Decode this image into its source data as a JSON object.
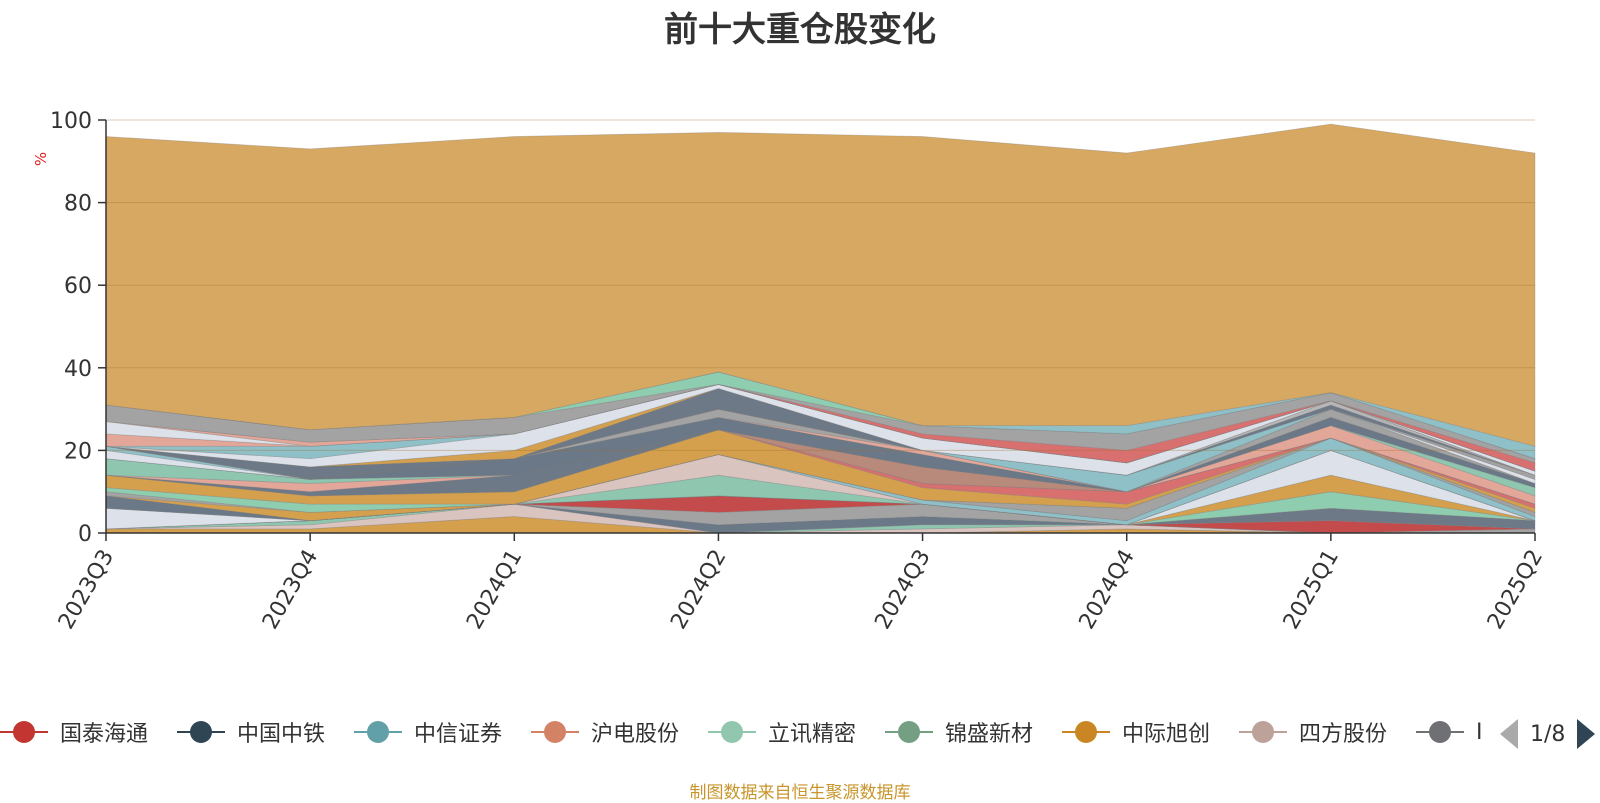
{
  "chart_data": {
    "type": "area",
    "title": "前十大重仓股变化",
    "ylabel": "%",
    "ylim": [
      0,
      100
    ],
    "yticks": [
      0,
      20,
      40,
      60,
      80,
      100
    ],
    "grid": true,
    "stacked": true,
    "categories": [
      "2023Q3",
      "2023Q4",
      "2024Q1",
      "2024Q2",
      "2024Q3",
      "2024Q4",
      "2025Q1",
      "2025Q2"
    ],
    "series": [
      {
        "color": "#d4a04e",
        "values": [
          1,
          1,
          4,
          0,
          0,
          1,
          0,
          0
        ]
      },
      {
        "color": "#dac4c0",
        "values": [
          0,
          1,
          3,
          0,
          1,
          1,
          0,
          0
        ]
      },
      {
        "color": "#8fc6b0",
        "values": [
          0,
          1,
          0,
          0,
          1,
          0,
          0,
          0
        ]
      },
      {
        "color": "#6a7888",
        "values": [
          0,
          0,
          0,
          2,
          2,
          0,
          0,
          0
        ]
      },
      {
        "color": "#a3a3a3",
        "values": [
          0,
          0,
          0,
          3,
          3,
          0,
          0,
          1
        ]
      },
      {
        "color": "#c44b4b",
        "values": [
          0,
          0,
          0,
          4,
          0,
          0,
          3,
          0
        ]
      },
      {
        "color": "#6e7988",
        "values": [
          0,
          0,
          0,
          0,
          0,
          0,
          3,
          2
        ]
      },
      {
        "color": "#8fcdb0",
        "values": [
          0,
          0,
          0,
          0,
          0,
          0,
          4,
          0
        ]
      },
      {
        "color": "#d4a04e",
        "values": [
          0,
          0,
          0,
          0,
          0,
          0,
          4,
          0
        ]
      },
      {
        "color": "#dde2ea",
        "values": [
          5,
          0,
          0,
          0,
          0,
          0,
          6,
          0
        ]
      },
      {
        "color": "#8fc6b0",
        "values": [
          0,
          0,
          0,
          5,
          0,
          0,
          0,
          0
        ]
      },
      {
        "color": "#dac4c0",
        "values": [
          0,
          0,
          0,
          5,
          0,
          0,
          0,
          0
        ]
      },
      {
        "color": "#6a7888",
        "values": [
          3,
          0,
          0,
          0,
          0,
          0,
          0,
          0
        ]
      },
      {
        "color": "#8fc0c8",
        "values": [
          0,
          0,
          0,
          0,
          1,
          1,
          3,
          1
        ]
      },
      {
        "color": "#d4a04e",
        "values": [
          0,
          2,
          0,
          0,
          0,
          0,
          0,
          0
        ]
      },
      {
        "color": "#a3a3a3",
        "values": [
          1,
          0,
          0,
          0,
          0,
          3,
          0,
          1
        ]
      },
      {
        "color": "#8fcdb0",
        "values": [
          1,
          2,
          0,
          0,
          0,
          0,
          0,
          0
        ]
      },
      {
        "color": "#d4a04e",
        "values": [
          3,
          2,
          3,
          6,
          3,
          1,
          0,
          1
        ]
      },
      {
        "color": "#d87070",
        "values": [
          0,
          0,
          0,
          0,
          1,
          3,
          0,
          1
        ]
      },
      {
        "color": "#6e7988",
        "values": [
          0,
          1,
          4,
          0,
          0,
          0,
          0,
          0
        ]
      },
      {
        "color": "#b88a7c",
        "values": [
          0,
          0,
          0,
          0,
          4,
          0,
          0,
          0
        ]
      },
      {
        "color": "#e3a79a",
        "values": [
          0,
          2,
          0,
          0,
          0,
          0,
          3,
          2
        ]
      },
      {
        "color": "#8fc6b0",
        "values": [
          4,
          1,
          0,
          0,
          0,
          0,
          0,
          2
        ]
      },
      {
        "color": "#6a7888",
        "values": [
          0,
          0,
          4,
          3,
          3,
          0,
          2,
          1
        ]
      },
      {
        "color": "#e3a79a",
        "values": [
          0,
          0,
          0,
          0,
          1,
          0,
          0,
          0
        ]
      },
      {
        "color": "#a3a3a3",
        "values": [
          0,
          0,
          0,
          2,
          0,
          0,
          2,
          0
        ]
      },
      {
        "color": "#dde2ea",
        "values": [
          2,
          0,
          0,
          0,
          0,
          0,
          0,
          1
        ]
      },
      {
        "color": "#8fc0c8",
        "values": [
          1,
          0,
          0,
          0,
          0,
          4,
          0,
          0
        ]
      },
      {
        "color": "#a3a3a3",
        "values": [
          0,
          0,
          0,
          0,
          0,
          0,
          0,
          1
        ]
      },
      {
        "color": "#6e7988",
        "values": [
          0,
          3,
          0,
          5,
          0,
          0,
          1,
          0
        ]
      },
      {
        "color": "#b7b7b7",
        "values": [
          0,
          0,
          0,
          0,
          0,
          0,
          1,
          0
        ]
      },
      {
        "color": "#d4a04e",
        "values": [
          0,
          0,
          2,
          0,
          0,
          0,
          0,
          0
        ]
      },
      {
        "color": "#dde2ea",
        "values": [
          0,
          2,
          4,
          1,
          3,
          3,
          0,
          1
        ]
      },
      {
        "color": "#8fc0c8",
        "values": [
          0,
          3,
          0,
          0,
          0,
          0,
          0,
          0
        ]
      },
      {
        "color": "#e3a79a",
        "values": [
          3,
          0,
          0,
          0,
          0,
          0,
          0,
          0
        ]
      },
      {
        "color": "#dde2ea",
        "values": [
          3,
          0,
          0,
          0,
          0,
          0,
          0,
          0
        ]
      },
      {
        "color": "#e3a79a",
        "values": [
          0,
          1,
          0,
          0,
          0,
          0,
          0,
          0
        ]
      },
      {
        "color": "#d87070",
        "values": [
          0,
          0,
          0,
          0,
          1,
          3,
          0,
          2
        ]
      },
      {
        "color": "#a3a3a3",
        "values": [
          4,
          3,
          4,
          0,
          2,
          4,
          2,
          1
        ]
      },
      {
        "color": "#8fcdb0",
        "values": [
          0,
          0,
          0,
          3,
          0,
          0,
          0,
          0
        ]
      },
      {
        "color": "#8fc0c8",
        "values": [
          0,
          0,
          0,
          0,
          0,
          2,
          0,
          3
        ]
      },
      {
        "color": "#d7a862",
        "values": [
          65,
          68,
          68,
          58,
          70,
          66,
          65,
          71
        ]
      }
    ]
  },
  "legend": {
    "items": [
      {
        "label": "国泰海通",
        "color": "#c23531"
      },
      {
        "label": "中国中铁",
        "color": "#2f4554"
      },
      {
        "label": "中信证券",
        "color": "#61a0a8"
      },
      {
        "label": "沪电股份",
        "color": "#d48265"
      },
      {
        "label": "立讯精密",
        "color": "#91c7ae"
      },
      {
        "label": "锦盛新材",
        "color": "#749f83"
      },
      {
        "label": "中际旭创",
        "color": "#ca8622"
      },
      {
        "label": "四方股份",
        "color": "#bda29a"
      },
      {
        "label": "I",
        "color": "#6e7074"
      }
    ],
    "page": "1/8"
  },
  "footer": {
    "source": "制图数据来自恒生聚源数据库"
  }
}
